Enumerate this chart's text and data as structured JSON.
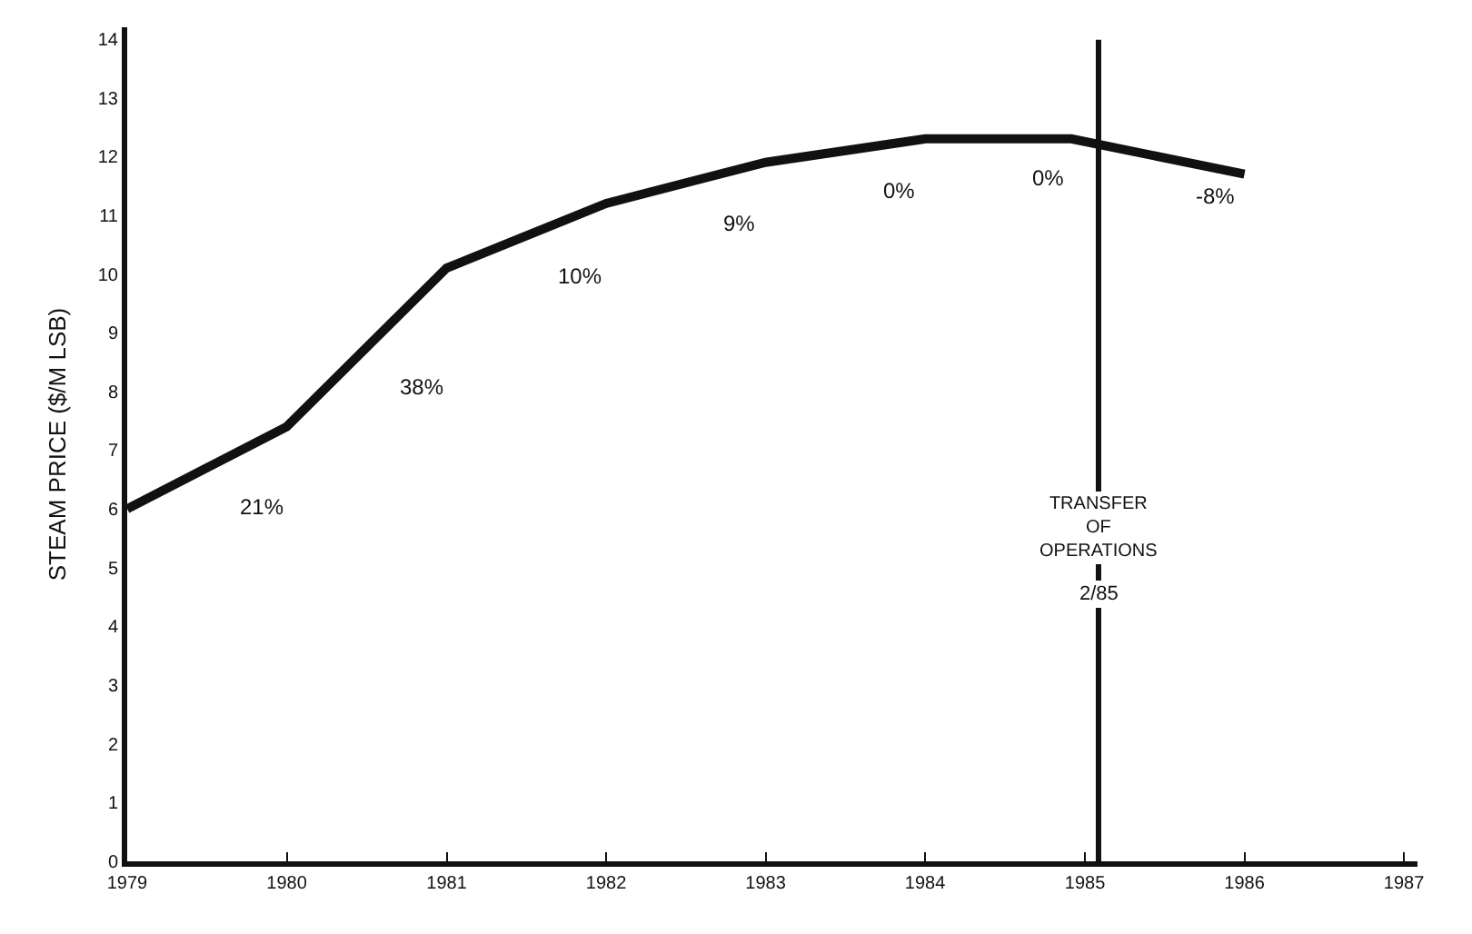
{
  "chart_data": {
    "type": "line",
    "ylabel": "STEAM PRICE ($/M LSB)",
    "x": [
      "1979",
      "1980",
      "1981",
      "1982",
      "1983",
      "1984",
      "1984-12",
      "1986"
    ],
    "series": [
      {
        "color": "#111111",
        "values": [
          6,
          7.4,
          10.1,
          11.2,
          11.9,
          12.3,
          12.3,
          11.7
        ]
      }
    ],
    "xlim": [
      "1979",
      "1987-02"
    ],
    "xticks": [
      "1979",
      "1980",
      "1981",
      "1982",
      "1983",
      "1984",
      "1985",
      "1986",
      "1987"
    ],
    "ylim": [
      0,
      14.2
    ],
    "yticks": [
      0,
      1,
      2,
      3,
      4,
      5,
      6,
      7,
      8,
      9,
      10,
      11,
      12,
      13,
      14
    ],
    "marker": "none",
    "line_style": "solid",
    "ref_lines": [
      {
        "axis": "x",
        "value": "1985-02",
        "label": "2/85",
        "color": "#111111"
      }
    ],
    "annotations": [
      "21%",
      "38%",
      "10%",
      "9%",
      "0%",
      "0%",
      "-8%",
      "TRANSFER OF OPERATIONS"
    ]
  }
}
